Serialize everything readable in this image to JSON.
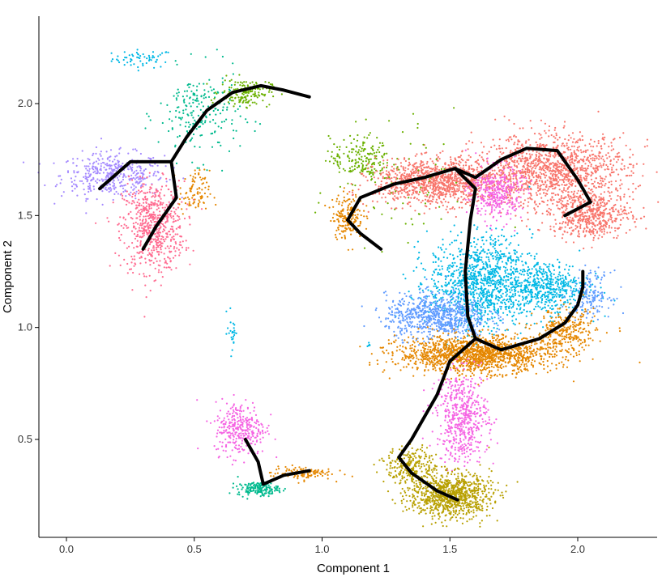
{
  "chart_data": {
    "type": "scatter",
    "title": "",
    "xlabel": "Component 1",
    "ylabel": "Component 2",
    "xlim": [
      -0.1,
      2.32
    ],
    "ylim": [
      0.1,
      2.4
    ],
    "x_ticks": [
      0.0,
      0.5,
      1.0,
      1.5,
      2.0
    ],
    "x_tick_labels": [
      "0.0",
      "0.5",
      "1.0",
      "1.5",
      "2.0"
    ],
    "y_ticks": [
      0.5,
      1.0,
      1.5,
      2.0
    ],
    "y_tick_labels": [
      "0.5",
      "1.0",
      "1.5",
      "2.0"
    ],
    "grid": false,
    "legend": "none",
    "colors": {
      "salmon": "#F8766D",
      "orange": "#E58700",
      "olive": "#B8A000",
      "green": "#6BB100",
      "teal": "#00BA8E",
      "cyan": "#00B8E5",
      "blue": "#619CFF",
      "purple": "#A58AFF",
      "magenta": "#F564E3",
      "pink": "#FF6C91",
      "trajectory": "#000000"
    },
    "clusters": [
      {
        "color_key": "cyan",
        "cx": 0.3,
        "cy": 2.2,
        "sx": 0.06,
        "sy": 0.02,
        "n": 60
      },
      {
        "color_key": "purple",
        "cx": 0.18,
        "cy": 1.68,
        "sx": 0.1,
        "sy": 0.05,
        "n": 420
      },
      {
        "color_key": "pink",
        "cx": 0.34,
        "cy": 1.45,
        "sx": 0.06,
        "sy": 0.1,
        "n": 650
      },
      {
        "color_key": "teal",
        "cx": 0.52,
        "cy": 1.95,
        "sx": 0.08,
        "sy": 0.1,
        "n": 220
      },
      {
        "color_key": "green",
        "cx": 0.7,
        "cy": 2.05,
        "sx": 0.05,
        "sy": 0.03,
        "n": 160
      },
      {
        "color_key": "orange",
        "cx": 0.5,
        "cy": 1.6,
        "sx": 0.03,
        "sy": 0.05,
        "n": 90
      },
      {
        "color_key": "cyan",
        "cx": 0.65,
        "cy": 0.98,
        "sx": 0.01,
        "sy": 0.05,
        "n": 25
      },
      {
        "color_key": "magenta",
        "cx": 0.68,
        "cy": 0.55,
        "sx": 0.05,
        "sy": 0.06,
        "n": 320
      },
      {
        "color_key": "teal",
        "cx": 0.75,
        "cy": 0.28,
        "sx": 0.04,
        "sy": 0.015,
        "n": 170
      },
      {
        "color_key": "orange",
        "cx": 0.92,
        "cy": 0.35,
        "sx": 0.06,
        "sy": 0.015,
        "n": 110
      },
      {
        "color_key": "green",
        "cx": 1.15,
        "cy": 1.75,
        "sx": 0.06,
        "sy": 0.05,
        "n": 180
      },
      {
        "color_key": "orange",
        "cx": 1.1,
        "cy": 1.5,
        "sx": 0.03,
        "sy": 0.05,
        "n": 180
      },
      {
        "color_key": "salmon",
        "cx": 1.45,
        "cy": 1.65,
        "sx": 0.12,
        "sy": 0.05,
        "n": 1100
      },
      {
        "color_key": "salmon",
        "cx": 1.9,
        "cy": 1.7,
        "sx": 0.15,
        "sy": 0.08,
        "n": 1300
      },
      {
        "color_key": "salmon",
        "cx": 2.05,
        "cy": 1.5,
        "sx": 0.08,
        "sy": 0.05,
        "n": 500
      },
      {
        "color_key": "magenta",
        "cx": 1.68,
        "cy": 1.6,
        "sx": 0.05,
        "sy": 0.06,
        "n": 350
      },
      {
        "color_key": "cyan",
        "cx": 1.62,
        "cy": 1.2,
        "sx": 0.1,
        "sy": 0.1,
        "n": 1100
      },
      {
        "color_key": "cyan",
        "cx": 1.88,
        "cy": 1.18,
        "sx": 0.08,
        "sy": 0.06,
        "n": 500
      },
      {
        "color_key": "blue",
        "cx": 1.45,
        "cy": 1.05,
        "sx": 0.1,
        "sy": 0.05,
        "n": 750
      },
      {
        "color_key": "blue",
        "cx": 2.05,
        "cy": 1.15,
        "sx": 0.04,
        "sy": 0.05,
        "n": 150
      },
      {
        "color_key": "orange",
        "cx": 1.6,
        "cy": 0.88,
        "sx": 0.15,
        "sy": 0.04,
        "n": 1500
      },
      {
        "color_key": "orange",
        "cx": 1.95,
        "cy": 0.98,
        "sx": 0.06,
        "sy": 0.05,
        "n": 300
      },
      {
        "color_key": "magenta",
        "cx": 1.55,
        "cy": 0.6,
        "sx": 0.05,
        "sy": 0.1,
        "n": 550
      },
      {
        "color_key": "olive",
        "cx": 1.5,
        "cy": 0.25,
        "sx": 0.08,
        "sy": 0.05,
        "n": 900
      },
      {
        "color_key": "olive",
        "cx": 1.35,
        "cy": 0.38,
        "sx": 0.05,
        "sy": 0.04,
        "n": 250
      },
      {
        "color_key": "green",
        "cx": 1.3,
        "cy": 1.65,
        "sx": 0.15,
        "sy": 0.15,
        "n": 80
      },
      {
        "color_key": "cyan",
        "cx": 1.18,
        "cy": 0.92,
        "sx": 0.005,
        "sy": 0.005,
        "n": 5
      }
    ],
    "trajectory": [
      [
        [
          0.13,
          1.62
        ],
        [
          0.25,
          1.74
        ],
        [
          0.41,
          1.74
        ],
        [
          0.43,
          1.58
        ],
        [
          0.35,
          1.45
        ],
        [
          0.3,
          1.35
        ]
      ],
      [
        [
          0.41,
          1.74
        ],
        [
          0.47,
          1.85
        ],
        [
          0.55,
          1.97
        ],
        [
          0.65,
          2.05
        ],
        [
          0.76,
          2.08
        ],
        [
          0.85,
          2.06
        ],
        [
          0.95,
          2.03
        ]
      ],
      [
        [
          0.95,
          0.36
        ],
        [
          0.85,
          0.34
        ],
        [
          0.77,
          0.3
        ],
        [
          0.75,
          0.4
        ],
        [
          0.7,
          0.5
        ]
      ],
      [
        [
          1.1,
          1.48
        ],
        [
          1.15,
          1.42
        ],
        [
          1.23,
          1.35
        ]
      ],
      [
        [
          1.1,
          1.48
        ],
        [
          1.15,
          1.58
        ],
        [
          1.28,
          1.64
        ],
        [
          1.4,
          1.67
        ],
        [
          1.52,
          1.71
        ],
        [
          1.6,
          1.67
        ],
        [
          1.7,
          1.75
        ],
        [
          1.8,
          1.8
        ],
        [
          1.92,
          1.79
        ],
        [
          2.0,
          1.66
        ],
        [
          2.05,
          1.56
        ],
        [
          1.95,
          1.5
        ]
      ],
      [
        [
          1.52,
          1.71
        ],
        [
          1.6,
          1.62
        ],
        [
          1.58,
          1.48
        ],
        [
          1.56,
          1.25
        ],
        [
          1.57,
          1.05
        ],
        [
          1.6,
          0.95
        ]
      ],
      [
        [
          1.6,
          0.95
        ],
        [
          1.7,
          0.9
        ],
        [
          1.85,
          0.95
        ],
        [
          1.95,
          1.02
        ],
        [
          2.0,
          1.1
        ],
        [
          2.02,
          1.18
        ],
        [
          2.02,
          1.25
        ]
      ],
      [
        [
          1.6,
          0.95
        ],
        [
          1.5,
          0.85
        ],
        [
          1.45,
          0.7
        ],
        [
          1.35,
          0.5
        ],
        [
          1.3,
          0.42
        ],
        [
          1.35,
          0.35
        ],
        [
          1.45,
          0.27
        ],
        [
          1.53,
          0.23
        ]
      ]
    ]
  }
}
